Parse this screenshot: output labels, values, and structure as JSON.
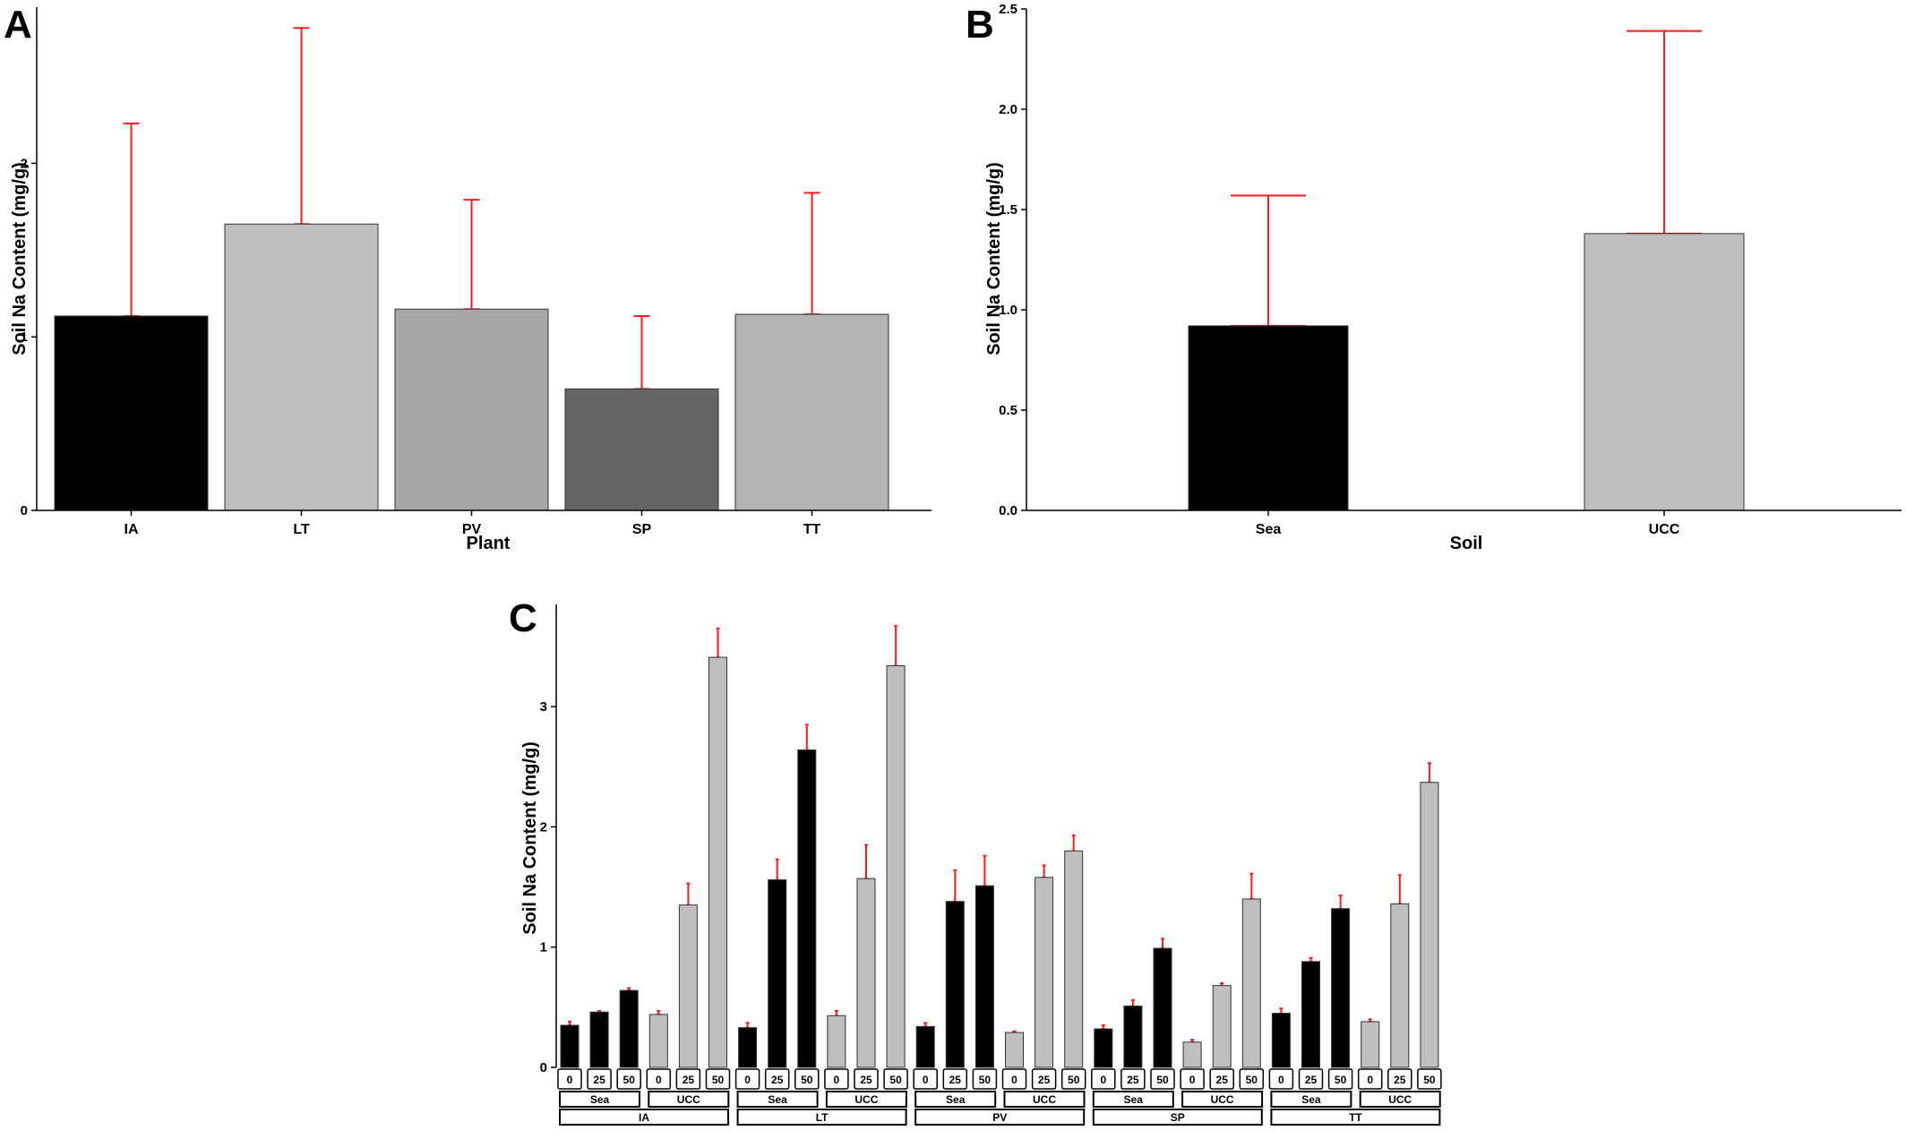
{
  "panels": {
    "a": "A",
    "b": "B",
    "c": "C"
  },
  "colors": {
    "error_bar": "#ff1a1a",
    "sea": "#000000",
    "ucc": "#bfbfbf",
    "axis": "#000000"
  },
  "chart_data": [
    {
      "id": "A",
      "type": "bar",
      "xlabel": "Plant",
      "ylabel": "Soil Na Content (mg/g)",
      "categories": [
        "IA",
        "LT",
        "PV",
        "SP",
        "TT"
      ],
      "values": [
        1.12,
        1.65,
        1.16,
        0.7,
        1.13
      ],
      "error_upper": [
        2.23,
        2.78,
        1.79,
        1.12,
        1.83
      ],
      "bar_colors": [
        "#000000",
        "#bfbfbf",
        "#a6a6a6",
        "#666666",
        "#b3b3b3"
      ],
      "ylim": [
        0,
        2.9
      ],
      "yticks": [
        0,
        1,
        2
      ],
      "ytick_labels": [
        "0",
        "1",
        "2"
      ]
    },
    {
      "id": "B",
      "type": "bar",
      "xlabel": "Soil",
      "ylabel": "Soil Na Content (mg/g)",
      "categories": [
        "Sea",
        "UCC"
      ],
      "values": [
        0.92,
        1.38
      ],
      "error_upper": [
        1.57,
        2.39
      ],
      "bar_colors": [
        "#000000",
        "#bfbfbf"
      ],
      "ylim": [
        0,
        2.5
      ],
      "yticks": [
        0,
        0.5,
        1,
        1.5,
        2,
        2.5
      ],
      "ytick_labels": [
        "0.0",
        "0.5",
        "1.0",
        "1.5",
        "2.0",
        "2.5"
      ]
    },
    {
      "id": "C",
      "type": "bar",
      "ylabel": "Soil Na Content (mg/g)",
      "ylim": [
        0,
        3.85
      ],
      "yticks": [
        0,
        1,
        2,
        3
      ],
      "ytick_labels": [
        "0",
        "1",
        "2",
        "3"
      ],
      "plants": [
        "IA",
        "LT",
        "PV",
        "SP",
        "TT"
      ],
      "soils": [
        "Sea",
        "UCC"
      ],
      "concentrations": [
        "0",
        "25",
        "50"
      ],
      "series": [
        {
          "plant": "IA",
          "soil": "Sea",
          "values": [
            0.35,
            0.46,
            0.64
          ],
          "error_upper": [
            0.38,
            0.47,
            0.66
          ]
        },
        {
          "plant": "IA",
          "soil": "UCC",
          "values": [
            0.44,
            1.35,
            3.41
          ],
          "error_upper": [
            0.47,
            1.53,
            3.65
          ]
        },
        {
          "plant": "LT",
          "soil": "Sea",
          "values": [
            0.33,
            1.56,
            2.64
          ],
          "error_upper": [
            0.37,
            1.73,
            2.85
          ]
        },
        {
          "plant": "LT",
          "soil": "UCC",
          "values": [
            0.43,
            1.57,
            3.34
          ],
          "error_upper": [
            0.47,
            1.85,
            3.67
          ]
        },
        {
          "plant": "PV",
          "soil": "Sea",
          "values": [
            0.34,
            1.38,
            1.51
          ],
          "error_upper": [
            0.37,
            1.64,
            1.76
          ]
        },
        {
          "plant": "PV",
          "soil": "UCC",
          "values": [
            0.29,
            1.58,
            1.8
          ],
          "error_upper": [
            0.3,
            1.68,
            1.93
          ]
        },
        {
          "plant": "SP",
          "soil": "Sea",
          "values": [
            0.32,
            0.51,
            0.99
          ],
          "error_upper": [
            0.35,
            0.56,
            1.07
          ]
        },
        {
          "plant": "SP",
          "soil": "UCC",
          "values": [
            0.21,
            0.68,
            1.4
          ],
          "error_upper": [
            0.23,
            0.7,
            1.61
          ]
        },
        {
          "plant": "TT",
          "soil": "Sea",
          "values": [
            0.45,
            0.88,
            1.32
          ],
          "error_upper": [
            0.49,
            0.91,
            1.43
          ]
        },
        {
          "plant": "TT",
          "soil": "UCC",
          "values": [
            0.38,
            1.36,
            2.37
          ],
          "error_upper": [
            0.4,
            1.6,
            2.53
          ]
        }
      ]
    }
  ]
}
